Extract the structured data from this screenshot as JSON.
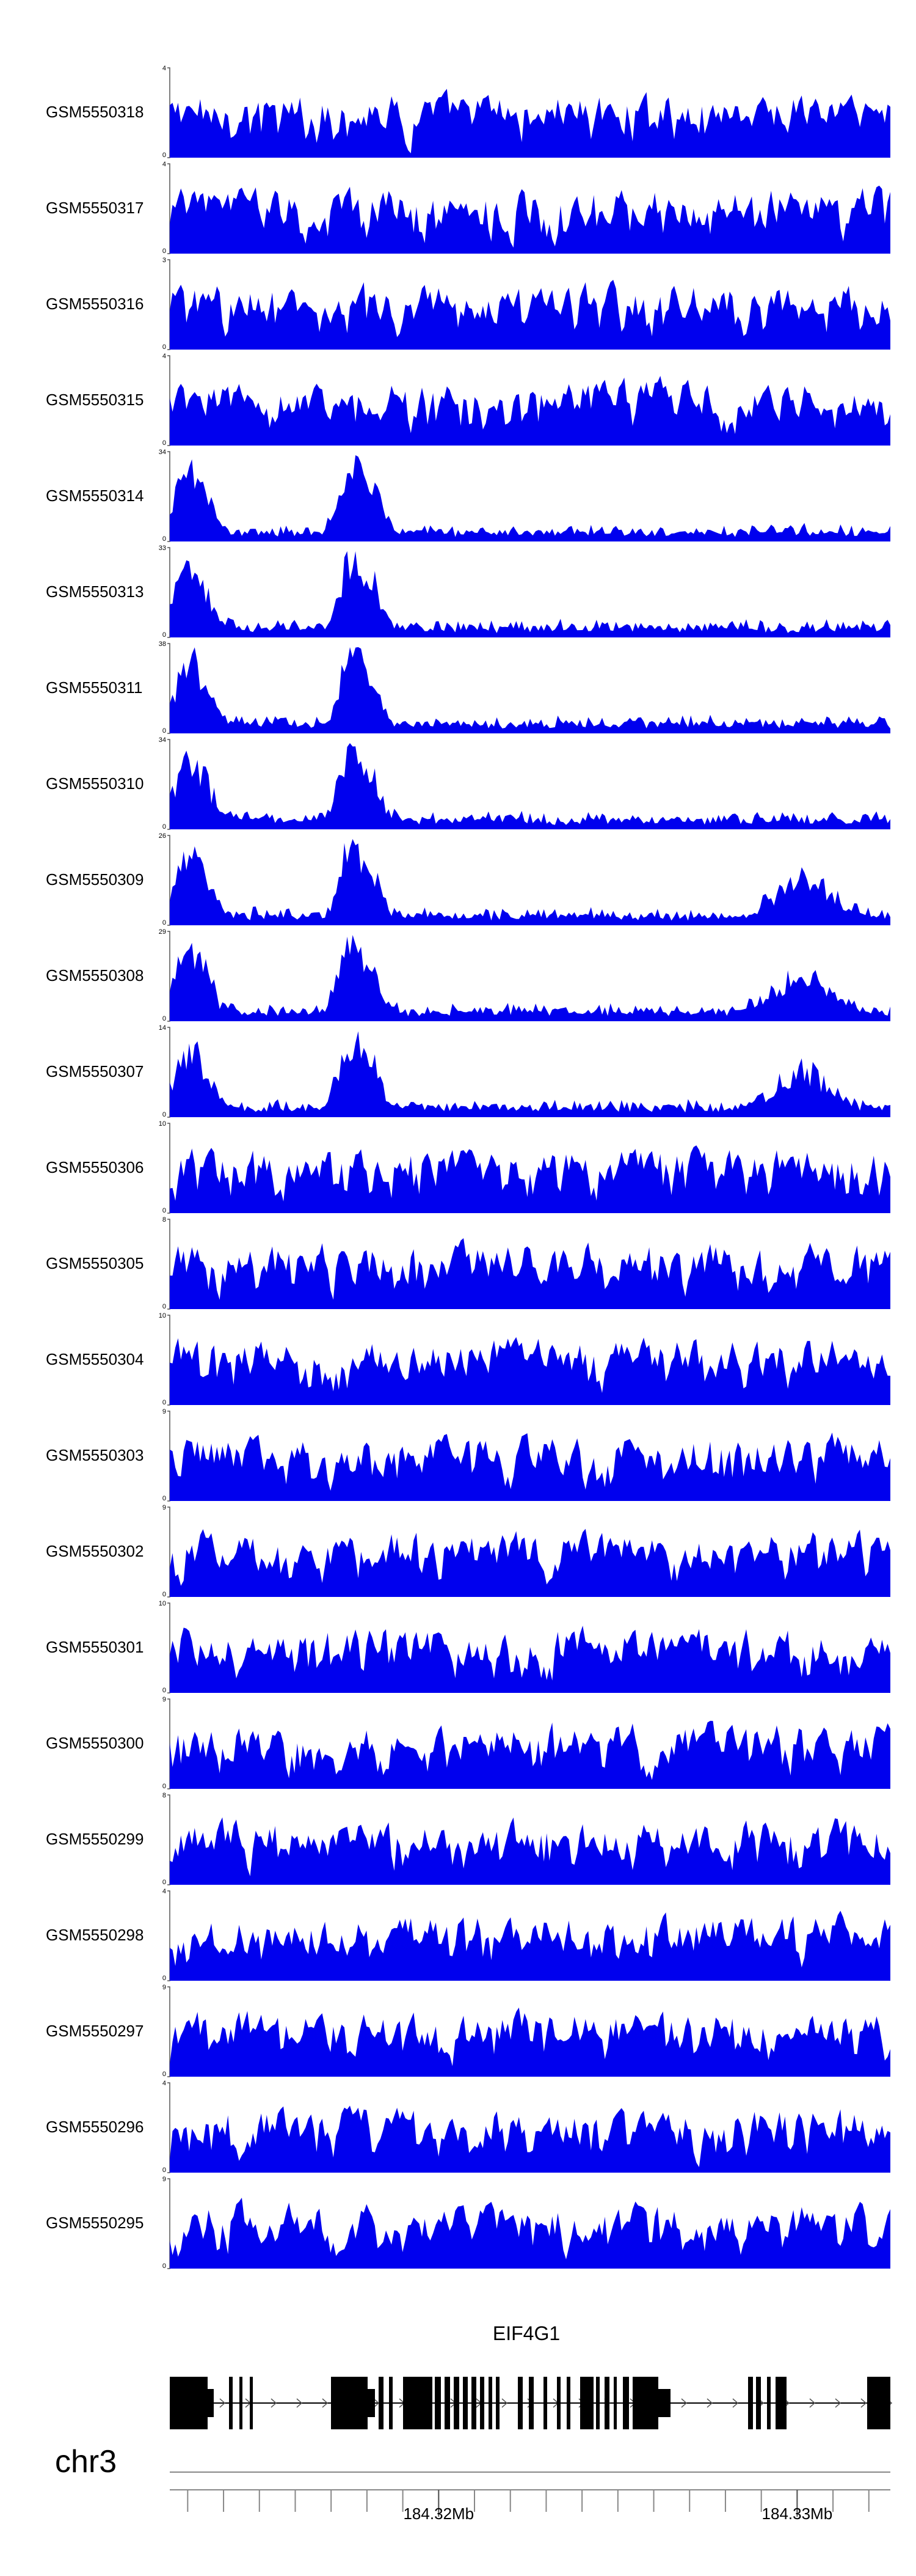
{
  "chart_data": {
    "type": "area",
    "color": "#0000ee",
    "genome": {
      "chromosome": "chr3",
      "gene": "EIF4G1",
      "axis_start_mb": 184.3125,
      "axis_end_mb": 184.3326,
      "ticks_mb": [
        184.32,
        184.33
      ],
      "tick_labels": [
        "184.32Mb",
        "184.33Mb"
      ]
    },
    "tracks": [
      {
        "name": "GSM5550318",
        "ymax": 4,
        "ymin": 0
      },
      {
        "name": "GSM5550317",
        "ymax": 4,
        "ymin": 0
      },
      {
        "name": "GSM5550316",
        "ymax": 3,
        "ymin": 0
      },
      {
        "name": "GSM5550315",
        "ymax": 4,
        "ymin": 0
      },
      {
        "name": "GSM5550314",
        "ymax": 34,
        "ymin": 0
      },
      {
        "name": "GSM5550313",
        "ymax": 33,
        "ymin": 0
      },
      {
        "name": "GSM5550311",
        "ymax": 38,
        "ymin": 0
      },
      {
        "name": "GSM5550310",
        "ymax": 34,
        "ymin": 0
      },
      {
        "name": "GSM5550309",
        "ymax": 26,
        "ymin": 0
      },
      {
        "name": "GSM5550308",
        "ymax": 29,
        "ymin": 0
      },
      {
        "name": "GSM5550307",
        "ymax": 14,
        "ymin": 0
      },
      {
        "name": "GSM5550306",
        "ymax": 10,
        "ymin": 0
      },
      {
        "name": "GSM5550305",
        "ymax": 8,
        "ymin": 0
      },
      {
        "name": "GSM5550304",
        "ymax": 10,
        "ymin": 0
      },
      {
        "name": "GSM5550303",
        "ymax": 9,
        "ymin": 0
      },
      {
        "name": "GSM5550302",
        "ymax": 9,
        "ymin": 0
      },
      {
        "name": "GSM5550301",
        "ymax": 10,
        "ymin": 0
      },
      {
        "name": "GSM5550300",
        "ymax": 9,
        "ymin": 0
      },
      {
        "name": "GSM5550299",
        "ymax": 8,
        "ymin": 0
      },
      {
        "name": "GSM5550298",
        "ymax": 4,
        "ymin": 0
      },
      {
        "name": "GSM5550297",
        "ymax": 9,
        "ymin": 0
      },
      {
        "name": "GSM5550296",
        "ymax": 4,
        "ymin": 0
      },
      {
        "name": "GSM5550295",
        "ymax": 9,
        "ymin": 0
      }
    ]
  }
}
